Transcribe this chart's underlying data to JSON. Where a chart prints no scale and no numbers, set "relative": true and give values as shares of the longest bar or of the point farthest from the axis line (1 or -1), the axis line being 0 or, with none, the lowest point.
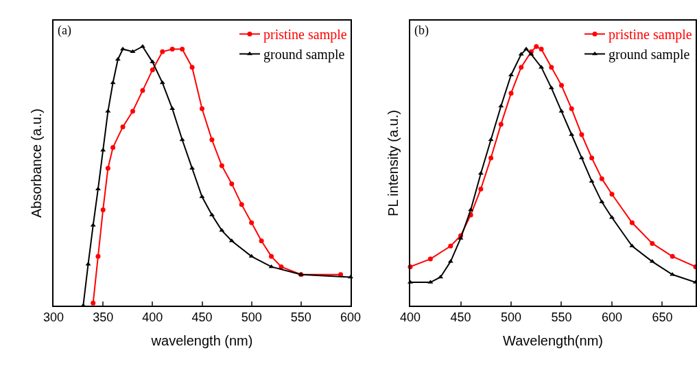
{
  "chart_data": [
    {
      "type": "line",
      "annotations": [
        "(a)"
      ],
      "xlabel": "wavelength (nm)",
      "ylabel": "Absorbance (a.u.)",
      "relative": true,
      "xlim": [
        300,
        600
      ],
      "xticks": [
        300,
        350,
        400,
        450,
        500,
        550,
        600
      ],
      "tick_labels": "x",
      "grid": false,
      "legend": "top right",
      "line_style": "solid",
      "series": [
        {
          "name": "pristine sample",
          "color": "#ff0000",
          "marker": "circle",
          "x": [
            340,
            345,
            350,
            355,
            360,
            370,
            380,
            390,
            400,
            410,
            420,
            430,
            440,
            450,
            460,
            470,
            480,
            490,
            500,
            510,
            520,
            530,
            550,
            590
          ],
          "values": [
            0.01,
            0.19,
            0.37,
            0.53,
            0.61,
            0.69,
            0.75,
            0.83,
            0.91,
            0.98,
            0.99,
            0.99,
            0.92,
            0.76,
            0.64,
            0.54,
            0.47,
            0.39,
            0.32,
            0.25,
            0.19,
            0.15,
            0.12,
            0.12
          ]
        },
        {
          "name": "ground sample",
          "color": "#000000",
          "marker": "triangle",
          "x": [
            330,
            335,
            340,
            345,
            350,
            355,
            360,
            365,
            370,
            380,
            390,
            400,
            410,
            420,
            430,
            440,
            450,
            460,
            470,
            480,
            500,
            520,
            550,
            600
          ],
          "values": [
            0,
            0.16,
            0.31,
            0.45,
            0.6,
            0.75,
            0.86,
            0.95,
            0.99,
            0.98,
            1,
            0.94,
            0.86,
            0.76,
            0.64,
            0.53,
            0.42,
            0.35,
            0.29,
            0.25,
            0.19,
            0.15,
            0.12,
            0.11
          ]
        }
      ]
    },
    {
      "type": "line",
      "annotations": [
        "(b)"
      ],
      "xlabel": "Wavelength(nm)",
      "ylabel": "PL intensity (a.u.)",
      "relative": true,
      "xlim": [
        400,
        683
      ],
      "xticks": [
        400,
        450,
        500,
        550,
        600,
        650
      ],
      "tick_labels": "x",
      "grid": false,
      "legend": "top right",
      "line_style": "solid",
      "series": [
        {
          "name": "pristine sample",
          "color": "#ff0000",
          "marker": "circle",
          "x": [
            400,
            420,
            440,
            450,
            460,
            470,
            480,
            490,
            500,
            510,
            520,
            525,
            530,
            540,
            550,
            560,
            570,
            580,
            590,
            600,
            620,
            640,
            660,
            683
          ],
          "values": [
            0.15,
            0.18,
            0.23,
            0.27,
            0.35,
            0.45,
            0.57,
            0.7,
            0.82,
            0.92,
            0.98,
            1,
            0.99,
            0.92,
            0.85,
            0.76,
            0.66,
            0.57,
            0.49,
            0.43,
            0.32,
            0.24,
            0.19,
            0.15
          ]
        },
        {
          "name": "ground sample",
          "color": "#000000",
          "marker": "triangle",
          "x": [
            400,
            420,
            430,
            440,
            450,
            460,
            470,
            480,
            490,
            500,
            510,
            515,
            520,
            530,
            540,
            550,
            560,
            570,
            580,
            590,
            600,
            620,
            640,
            660,
            683
          ],
          "values": [
            0.09,
            0.09,
            0.11,
            0.17,
            0.26,
            0.37,
            0.51,
            0.64,
            0.77,
            0.89,
            0.97,
            0.99,
            0.97,
            0.92,
            0.84,
            0.75,
            0.66,
            0.57,
            0.48,
            0.4,
            0.34,
            0.23,
            0.17,
            0.12,
            0.09
          ]
        }
      ]
    }
  ]
}
